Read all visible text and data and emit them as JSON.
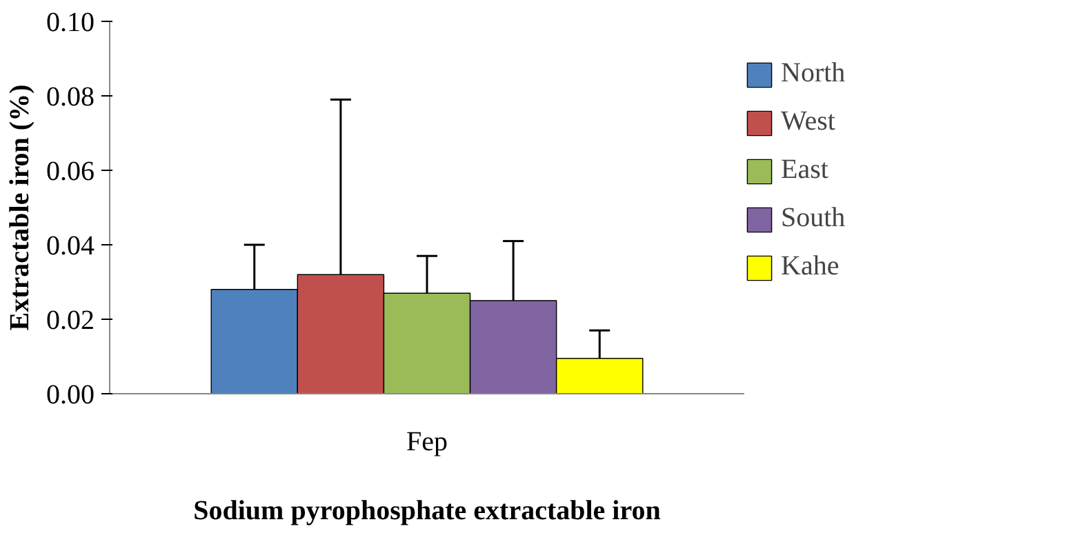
{
  "chart_data": {
    "type": "bar",
    "xlabel": "Sodium pyrophosphate extractable iron",
    "ylabel": "Extractable iron (%)",
    "categories": [
      "Fep"
    ],
    "ylim": [
      0,
      0.1
    ],
    "yticks": [
      {
        "value": 0,
        "label": "0.00"
      },
      {
        "value": 0.02,
        "label": "0.02"
      },
      {
        "value": 0.04,
        "label": "0.04"
      },
      {
        "value": 0.06,
        "label": "0.06"
      },
      {
        "value": 0.08,
        "label": "0.08"
      },
      {
        "value": 0.1,
        "label": "0.10"
      }
    ],
    "series": [
      {
        "name": "North",
        "color": "#4f81bd",
        "values": [
          0.028
        ],
        "errors": [
          [
            0.028,
            0.04
          ]
        ]
      },
      {
        "name": "West",
        "color": "#c0504d",
        "values": [
          0.032
        ],
        "errors": [
          [
            0.032,
            0.079
          ]
        ]
      },
      {
        "name": "East",
        "color": "#9bbb59",
        "values": [
          0.027
        ],
        "errors": [
          [
            0.027,
            0.037
          ]
        ]
      },
      {
        "name": "South",
        "color": "#8064a2",
        "values": [
          0.025
        ],
        "errors": [
          [
            0.025,
            0.041
          ]
        ]
      },
      {
        "name": "Kahe",
        "color": "#ffff00",
        "values": [
          0.0095
        ],
        "errors": [
          [
            0.0095,
            0.017
          ]
        ]
      }
    ],
    "grid": false,
    "legend": "right"
  }
}
